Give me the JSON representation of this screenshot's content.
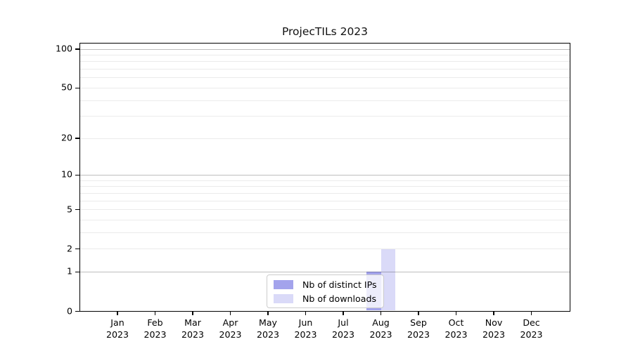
{
  "figure": {
    "background": "#ffffff"
  },
  "chart_data": {
    "type": "bar",
    "title": "ProjecTILs 2023",
    "xlabel": "",
    "ylabel": "",
    "categories": [
      "Jan\n2023",
      "Feb\n2023",
      "Mar\n2023",
      "Apr\n2023",
      "May\n2023",
      "Jun\n2023",
      "Jul\n2023",
      "Aug\n2023",
      "Sep\n2023",
      "Oct\n2023",
      "Nov\n2023",
      "Dec\n2023"
    ],
    "series": [
      {
        "name": "Nb of distinct IPs",
        "color": "#a3a3ec",
        "values": [
          0,
          0,
          0,
          0,
          0,
          0,
          0,
          1,
          0,
          0,
          0,
          0
        ]
      },
      {
        "name": "Nb of downloads",
        "color": "#dadaf8",
        "values": [
          0,
          0,
          0,
          0,
          0,
          0,
          0,
          2,
          0,
          0,
          0,
          0
        ]
      }
    ],
    "yscale": "log1p",
    "yticks": [
      0,
      1,
      2,
      5,
      10,
      20,
      50,
      100
    ],
    "ylim": [
      0,
      112
    ],
    "grid": "horizontal-major-and-minor",
    "legend_position": "lower center",
    "grid_major_color": "#c2c2c2",
    "grid_minor_color": "#ebebeb",
    "axis_color": "#000000"
  }
}
